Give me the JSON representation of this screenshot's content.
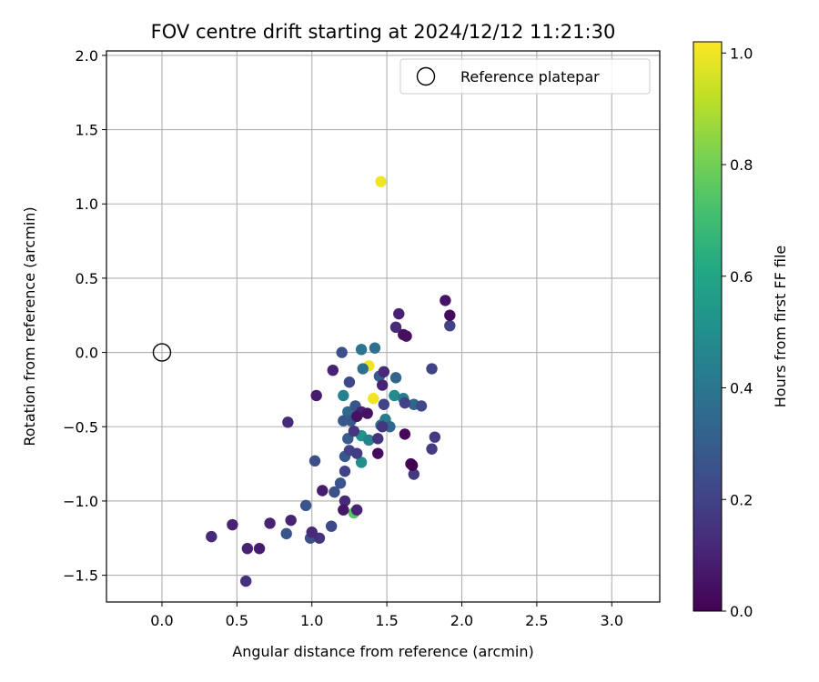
{
  "chart_data": {
    "type": "scatter",
    "title": "FOV centre drift starting at 2024/12/12 11:21:30",
    "xlabel": "Angular distance from reference (arcmin)",
    "ylabel": "Rotation from reference (arcmin)",
    "xlim": [
      -0.37,
      3.32
    ],
    "ylim": [
      -1.68,
      2.03
    ],
    "x_ticks": [
      0.0,
      0.5,
      1.0,
      1.5,
      2.0,
      2.5,
      3.0
    ],
    "x_tick_labels": [
      "0.0",
      "0.5",
      "1.0",
      "1.5",
      "2.0",
      "2.5",
      "3.0"
    ],
    "y_ticks": [
      -1.5,
      -1.0,
      -0.5,
      0.0,
      0.5,
      1.0,
      1.5,
      2.0
    ],
    "y_tick_labels": [
      "−1.5",
      "−1.0",
      "−0.5",
      "0.0",
      "0.5",
      "1.0",
      "1.5",
      "2.0"
    ],
    "grid": true,
    "legend": {
      "placement": "top-right",
      "entries": [
        "Reference platepar"
      ]
    },
    "reference_point": {
      "name": "Reference platepar",
      "x": 0.0,
      "y": 0.0
    },
    "colorbar": {
      "label": "Hours from first FF file",
      "colormap": "viridis",
      "range": [
        0.0,
        1.02
      ],
      "ticks": [
        0.0,
        0.2,
        0.4,
        0.6,
        0.8,
        1.0
      ],
      "tick_labels": [
        "0.0",
        "0.2",
        "0.4",
        "0.6",
        "0.8",
        "1.0"
      ]
    },
    "points": [
      {
        "x": 1.46,
        "y": 1.15,
        "c": 1.0
      },
      {
        "x": 1.38,
        "y": -0.09,
        "c": 1.0
      },
      {
        "x": 1.41,
        "y": -0.31,
        "c": 1.0
      },
      {
        "x": 1.28,
        "y": -1.08,
        "c": 0.75
      },
      {
        "x": 1.33,
        "y": -0.74,
        "c": 0.5
      },
      {
        "x": 1.33,
        "y": -0.56,
        "c": 0.52
      },
      {
        "x": 1.55,
        "y": -0.29,
        "c": 0.48
      },
      {
        "x": 1.21,
        "y": -0.29,
        "c": 0.45
      },
      {
        "x": 1.38,
        "y": -0.59,
        "c": 0.45
      },
      {
        "x": 1.49,
        "y": -0.45,
        "c": 0.42
      },
      {
        "x": 1.61,
        "y": -0.31,
        "c": 0.42
      },
      {
        "x": 1.33,
        "y": 0.02,
        "c": 0.4
      },
      {
        "x": 1.42,
        "y": 0.03,
        "c": 0.38
      },
      {
        "x": 1.34,
        "y": -0.11,
        "c": 0.38
      },
      {
        "x": 1.24,
        "y": -0.4,
        "c": 0.35
      },
      {
        "x": 1.46,
        "y": -0.49,
        "c": 0.38
      },
      {
        "x": 1.68,
        "y": -0.35,
        "c": 0.34
      },
      {
        "x": 1.56,
        "y": -0.17,
        "c": 0.33
      },
      {
        "x": 1.45,
        "y": -0.16,
        "c": 0.3
      },
      {
        "x": 1.52,
        "y": -0.5,
        "c": 0.34
      },
      {
        "x": 1.24,
        "y": -0.58,
        "c": 0.3
      },
      {
        "x": 1.26,
        "y": -0.46,
        "c": 0.28
      },
      {
        "x": 1.21,
        "y": -0.46,
        "c": 0.28
      },
      {
        "x": 1.29,
        "y": -0.36,
        "c": 0.27
      },
      {
        "x": 1.22,
        "y": -0.7,
        "c": 0.28
      },
      {
        "x": 1.19,
        "y": -0.88,
        "c": 0.27
      },
      {
        "x": 1.15,
        "y": -0.94,
        "c": 0.25
      },
      {
        "x": 1.2,
        "y": 0.0,
        "c": 0.25
      },
      {
        "x": 0.96,
        "y": -1.03,
        "c": 0.27
      },
      {
        "x": 0.83,
        "y": -1.22,
        "c": 0.27
      },
      {
        "x": 0.99,
        "y": -1.25,
        "c": 0.25
      },
      {
        "x": 1.02,
        "y": -0.73,
        "c": 0.24
      },
      {
        "x": 1.13,
        "y": -1.17,
        "c": 0.22
      },
      {
        "x": 1.25,
        "y": -0.2,
        "c": 0.22
      },
      {
        "x": 1.22,
        "y": -0.8,
        "c": 0.2
      },
      {
        "x": 1.25,
        "y": -0.66,
        "c": 0.2
      },
      {
        "x": 1.3,
        "y": -0.68,
        "c": 0.18
      },
      {
        "x": 1.48,
        "y": -0.35,
        "c": 0.2
      },
      {
        "x": 1.62,
        "y": -0.34,
        "c": 0.2
      },
      {
        "x": 1.73,
        "y": -0.36,
        "c": 0.22
      },
      {
        "x": 1.8,
        "y": -0.11,
        "c": 0.2
      },
      {
        "x": 1.92,
        "y": 0.18,
        "c": 0.2
      },
      {
        "x": 1.82,
        "y": -0.57,
        "c": 0.18
      },
      {
        "x": 1.8,
        "y": -0.65,
        "c": 0.18
      },
      {
        "x": 1.68,
        "y": -0.82,
        "c": 0.17
      },
      {
        "x": 1.28,
        "y": -0.53,
        "c": 0.16
      },
      {
        "x": 1.47,
        "y": -0.5,
        "c": 0.16
      },
      {
        "x": 1.44,
        "y": -0.58,
        "c": 0.15
      },
      {
        "x": 1.05,
        "y": -1.25,
        "c": 0.15
      },
      {
        "x": 1.22,
        "y": -1.0,
        "c": 0.12
      },
      {
        "x": 0.84,
        "y": -0.47,
        "c": 0.12
      },
      {
        "x": 1.33,
        "y": -0.4,
        "c": 0.1
      },
      {
        "x": 1.58,
        "y": 0.26,
        "c": 0.1
      },
      {
        "x": 1.56,
        "y": 0.17,
        "c": 0.12
      },
      {
        "x": 1.48,
        "y": -0.13,
        "c": 0.12
      },
      {
        "x": 1.47,
        "y": -0.22,
        "c": 0.1
      },
      {
        "x": 1.14,
        "y": -0.12,
        "c": 0.1
      },
      {
        "x": 1.03,
        "y": -0.29,
        "c": 0.08
      },
      {
        "x": 1.3,
        "y": -1.06,
        "c": 0.1
      },
      {
        "x": 1.21,
        "y": -1.06,
        "c": 0.06
      },
      {
        "x": 1.07,
        "y": -0.93,
        "c": 0.08
      },
      {
        "x": 1.0,
        "y": -1.21,
        "c": 0.12
      },
      {
        "x": 0.86,
        "y": -1.13,
        "c": 0.1
      },
      {
        "x": 0.72,
        "y": -1.15,
        "c": 0.1
      },
      {
        "x": 0.47,
        "y": -1.16,
        "c": 0.1
      },
      {
        "x": 0.33,
        "y": -1.24,
        "c": 0.12
      },
      {
        "x": 0.57,
        "y": -1.32,
        "c": 0.1
      },
      {
        "x": 0.65,
        "y": -1.32,
        "c": 0.08
      },
      {
        "x": 0.56,
        "y": -1.54,
        "c": 0.14
      },
      {
        "x": 1.61,
        "y": 0.12,
        "c": 0.05
      },
      {
        "x": 1.63,
        "y": 0.11,
        "c": 0.04
      },
      {
        "x": 1.89,
        "y": 0.35,
        "c": 0.05
      },
      {
        "x": 1.92,
        "y": 0.25,
        "c": 0.03
      },
      {
        "x": 1.62,
        "y": -0.55,
        "c": 0.02
      },
      {
        "x": 1.66,
        "y": -0.75,
        "c": 0.02
      },
      {
        "x": 1.67,
        "y": -0.76,
        "c": 0.0
      },
      {
        "x": 1.44,
        "y": -0.68,
        "c": 0.03
      },
      {
        "x": 1.37,
        "y": -0.41,
        "c": 0.05
      },
      {
        "x": 1.3,
        "y": -0.43,
        "c": 0.05
      }
    ]
  }
}
